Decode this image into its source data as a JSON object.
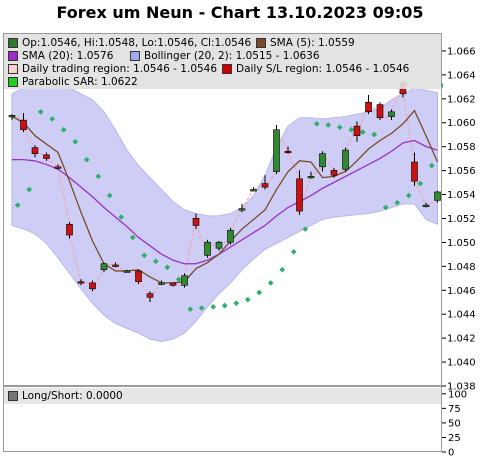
{
  "title": "Forex um Neun - Chart 13.10.2023 09:05",
  "legend": [
    {
      "label": "Op:1.0546, Hi:1.0548, Lo:1.0546, Cl:1.0546",
      "color": "#2f7a2f"
    },
    {
      "label": "SMA (5): 1.0559",
      "color": "#7a4a2a"
    },
    {
      "label": "SMA (20): 1.0576",
      "color": "#9b30c8"
    },
    {
      "label": "Bollinger (20, 2): 1.0515 - 1.0636",
      "color": "#a8a8ee"
    },
    {
      "label": "Daily trading region: 1.0546 - 1.0546",
      "color": "#ffd0d0"
    },
    {
      "label": "Daily S/L region: 1.0546 - 1.0546",
      "color": "#cc0000"
    },
    {
      "label": "Parabolic SAR: 1.0622",
      "color": "#22cc22"
    }
  ],
  "lower_legend": {
    "label": "Long/Short: 0.0000",
    "color": "#777777"
  },
  "chart_data": [
    {
      "type": "candlestick",
      "title": "Forex um Neun - Chart 13.10.2023 09:05",
      "ylim": [
        1.038,
        1.0675
      ],
      "y_ticks": [
        "1.066",
        "1.064",
        "1.062",
        "1.060",
        "1.058",
        "1.056",
        "1.054",
        "1.052",
        "1.050",
        "1.048",
        "1.046",
        "1.044",
        "1.042",
        "1.040",
        "1.038"
      ],
      "candles": [
        {
          "o": 1.0606,
          "h": 1.0608,
          "l": 1.0603,
          "c": 1.0607
        },
        {
          "o": 1.0603,
          "h": 1.0609,
          "l": 1.0593,
          "c": 1.0595
        },
        {
          "o": 1.058,
          "h": 1.0582,
          "l": 1.0572,
          "c": 1.0575
        },
        {
          "o": 1.0574,
          "h": 1.0576,
          "l": 1.0569,
          "c": 1.0571
        },
        {
          "o": 1.0564,
          "h": 1.0566,
          "l": 1.0562,
          "c": 1.0563
        },
        {
          "o": 1.0516,
          "h": 1.0518,
          "l": 1.0504,
          "c": 1.0507
        },
        {
          "o": 1.0468,
          "h": 1.047,
          "l": 1.0465,
          "c": 1.0467
        },
        {
          "o": 1.0467,
          "h": 1.0469,
          "l": 1.046,
          "c": 1.0462
        },
        {
          "o": 1.0478,
          "h": 1.0484,
          "l": 1.0476,
          "c": 1.0483
        },
        {
          "o": 1.0482,
          "h": 1.0484,
          "l": 1.048,
          "c": 1.0481
        },
        {
          "o": 1.0477,
          "h": 1.0478,
          "l": 1.0476,
          "c": 1.0477
        },
        {
          "o": 1.0477,
          "h": 1.0478,
          "l": 1.0466,
          "c": 1.0468
        },
        {
          "o": 1.0458,
          "h": 1.046,
          "l": 1.0451,
          "c": 1.0455
        },
        {
          "o": 1.0467,
          "h": 1.0469,
          "l": 1.0465,
          "c": 1.0467
        },
        {
          "o": 1.0467,
          "h": 1.0467,
          "l": 1.0464,
          "c": 1.0465
        },
        {
          "o": 1.0465,
          "h": 1.0475,
          "l": 1.0463,
          "c": 1.0473
        },
        {
          "o": 1.0521,
          "h": 1.0525,
          "l": 1.0512,
          "c": 1.0515
        },
        {
          "o": 1.049,
          "h": 1.0503,
          "l": 1.0488,
          "c": 1.0501
        },
        {
          "o": 1.0496,
          "h": 1.0502,
          "l": 1.0494,
          "c": 1.0501
        },
        {
          "o": 1.0501,
          "h": 1.0513,
          "l": 1.0499,
          "c": 1.0511
        },
        {
          "o": 1.0529,
          "h": 1.0533,
          "l": 1.0526,
          "c": 1.0529
        },
        {
          "o": 1.0545,
          "h": 1.0547,
          "l": 1.0544,
          "c": 1.0545
        },
        {
          "o": 1.055,
          "h": 1.0557,
          "l": 1.0545,
          "c": 1.0547
        },
        {
          "o": 1.056,
          "h": 1.0599,
          "l": 1.0558,
          "c": 1.0595
        },
        {
          "o": 1.0577,
          "h": 1.0581,
          "l": 1.0575,
          "c": 1.0576
        },
        {
          "o": 1.0554,
          "h": 1.0561,
          "l": 1.0524,
          "c": 1.0527
        },
        {
          "o": 1.0556,
          "h": 1.056,
          "l": 1.0554,
          "c": 1.0556
        },
        {
          "o": 1.0564,
          "h": 1.0577,
          "l": 1.056,
          "c": 1.0575
        },
        {
          "o": 1.0561,
          "h": 1.0563,
          "l": 1.0555,
          "c": 1.0557
        },
        {
          "o": 1.0562,
          "h": 1.058,
          "l": 1.056,
          "c": 1.0578
        },
        {
          "o": 1.0598,
          "h": 1.0602,
          "l": 1.0585,
          "c": 1.059
        },
        {
          "o": 1.0618,
          "h": 1.0624,
          "l": 1.0608,
          "c": 1.061
        },
        {
          "o": 1.0616,
          "h": 1.0618,
          "l": 1.0603,
          "c": 1.0605
        },
        {
          "o": 1.0606,
          "h": 1.0612,
          "l": 1.0603,
          "c": 1.061
        },
        {
          "o": 1.0634,
          "h": 1.0636,
          "l": 1.0622,
          "c": 1.0625
        },
        {
          "o": 1.0568,
          "h": 1.0576,
          "l": 1.0548,
          "c": 1.0552
        },
        {
          "o": 1.0532,
          "h": 1.0534,
          "l": 1.053,
          "c": 1.0532
        },
        {
          "o": 1.0536,
          "h": 1.0544,
          "l": 1.0534,
          "c": 1.0543
        }
      ],
      "sma5": [
        1.0606,
        1.0601,
        1.059,
        1.0583,
        1.0576,
        1.0552,
        1.0526,
        1.0502,
        1.0483,
        1.0477,
        1.0477,
        1.0478,
        1.0472,
        1.0467,
        1.0467,
        1.0468,
        1.0479,
        1.0484,
        1.0491,
        1.0502,
        1.0512,
        1.052,
        1.0528,
        1.0545,
        1.056,
        1.0569,
        1.0568,
        1.0555,
        1.0556,
        1.056,
        1.0569,
        1.0579,
        1.0586,
        1.0592,
        1.06,
        1.0611,
        1.059,
        1.0568
      ],
      "sma20": [
        1.057,
        1.057,
        1.0569,
        1.0566,
        1.0562,
        1.0555,
        1.0547,
        1.0539,
        1.053,
        1.0522,
        1.0514,
        1.0505,
        1.0498,
        1.0491,
        1.0486,
        1.0483,
        1.0483,
        1.0486,
        1.0491,
        1.0497,
        1.0503,
        1.0509,
        1.0515,
        1.0523,
        1.053,
        1.0535,
        1.054,
        1.0546,
        1.0551,
        1.0556,
        1.0561,
        1.0566,
        1.0571,
        1.0577,
        1.0584,
        1.0586,
        1.0581,
        1.0578
      ],
      "bollinger_upper": [
        1.0625,
        1.063,
        1.0632,
        1.0634,
        1.0634,
        1.063,
        1.0625,
        1.062,
        1.061,
        1.0595,
        1.0578,
        1.0565,
        1.0555,
        1.0545,
        1.0535,
        1.0528,
        1.0525,
        1.0523,
        1.0523,
        1.0525,
        1.053,
        1.054,
        1.0557,
        1.058,
        1.0598,
        1.0605,
        1.0605,
        1.0604,
        1.0605,
        1.0606,
        1.0608,
        1.061,
        1.0613,
        1.062,
        1.0625,
        1.063,
        1.0628,
        1.0626
      ],
      "bollinger_lower": [
        1.0515,
        1.0512,
        1.0508,
        1.05,
        1.0488,
        1.0475,
        1.0462,
        1.045,
        1.044,
        1.0433,
        1.0429,
        1.0425,
        1.042,
        1.0418,
        1.042,
        1.0425,
        1.0435,
        1.0447,
        1.0458,
        1.0467,
        1.0478,
        1.0487,
        1.0495,
        1.05,
        1.0505,
        1.051,
        1.0515,
        1.052,
        1.0522,
        1.0523,
        1.0524,
        1.0525,
        1.0527,
        1.053,
        1.0533,
        1.0533,
        1.052,
        1.0516
      ],
      "parabolic_sar": [
        1.0532,
        1.0545,
        1.061,
        1.0604,
        1.0595,
        1.0585,
        1.057,
        1.0556,
        1.054,
        1.0522,
        1.0505,
        1.049,
        1.0485,
        1.048,
        1.047,
        1.0445,
        1.0446,
        1.0447,
        1.0448,
        1.045,
        1.0453,
        1.0459,
        1.0467,
        1.0478,
        1.0493,
        1.0512,
        1.06,
        1.0599,
        1.0597,
        1.0595,
        1.0593,
        1.0591,
        1.053,
        1.0534,
        1.054,
        1.055,
        1.0565,
        1.0632
      ]
    },
    {
      "type": "line",
      "title": "",
      "ylim": [
        0,
        110
      ],
      "y_ticks": [
        "100",
        "75",
        "50",
        "25",
        "0"
      ],
      "series": [
        {
          "name": "Long/Short",
          "values": [
            0
          ]
        }
      ]
    }
  ]
}
